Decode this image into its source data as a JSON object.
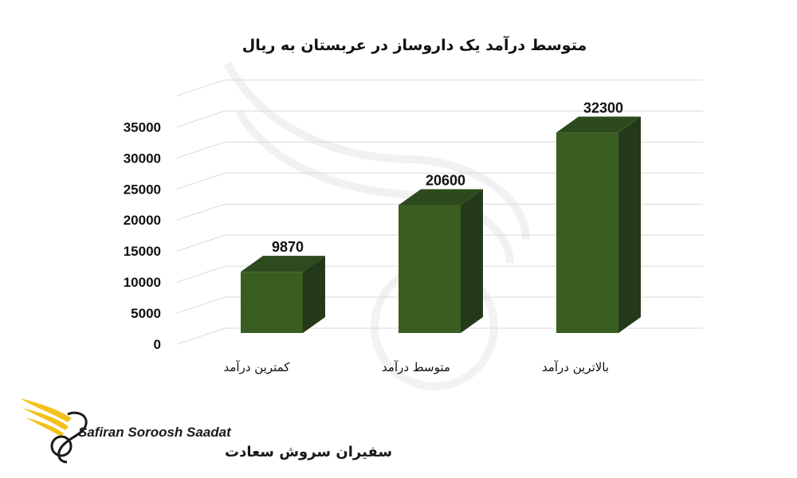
{
  "chart_data": {
    "type": "bar",
    "title": "متوسط درآمد یک داروساز در عربستان به ریال",
    "categories": [
      "کمترین درآمد",
      "متوسط درآمد",
      "بالاترین درآمد"
    ],
    "values": [
      9870,
      20600,
      32300
    ],
    "yticks": [
      0,
      5000,
      10000,
      15000,
      20000,
      25000,
      30000,
      35000
    ],
    "ylim": [
      0,
      40000
    ],
    "grid": true,
    "colors": {
      "front": "#3a5e22",
      "side": "#24391a",
      "top": "#2d4a1c"
    }
  },
  "watermark": {
    "brand_en": "Safiran Soroosh Saadat",
    "brand_fa": "سفیران سروش سعادت"
  }
}
